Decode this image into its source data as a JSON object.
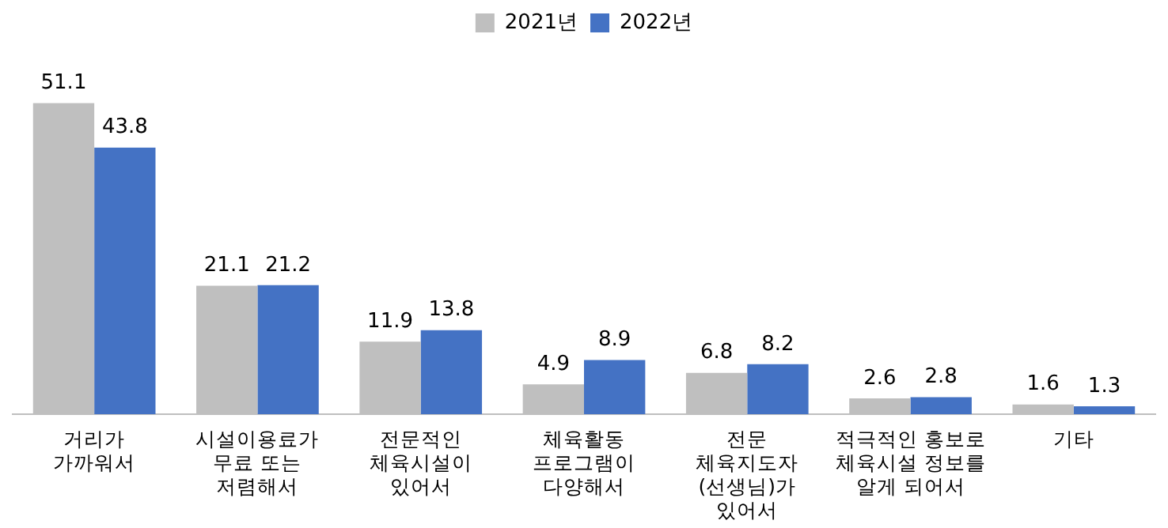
{
  "chart_data": {
    "type": "bar",
    "categories": [
      "거리가\n가까워서",
      "시설이용료가\n무료 또는\n저렴해서",
      "전문적인\n체육시설이\n있어서",
      "체육활동\n프로그램이\n다양해서",
      "전문\n체육지도자\n(선생님)가\n있어서",
      "적극적인 홍보로\n체육시설 정보를\n알게 되어서",
      "기타"
    ],
    "series": [
      {
        "name": "2021년",
        "color": "#bfbfbf",
        "values": [
          51.1,
          21.1,
          11.9,
          4.9,
          6.8,
          2.6,
          1.6
        ]
      },
      {
        "name": "2022년",
        "color": "#4472c4",
        "values": [
          43.8,
          21.2,
          13.8,
          8.9,
          8.2,
          2.8,
          1.3
        ]
      }
    ],
    "data_labels": true,
    "legend": "top",
    "grid": false
  }
}
